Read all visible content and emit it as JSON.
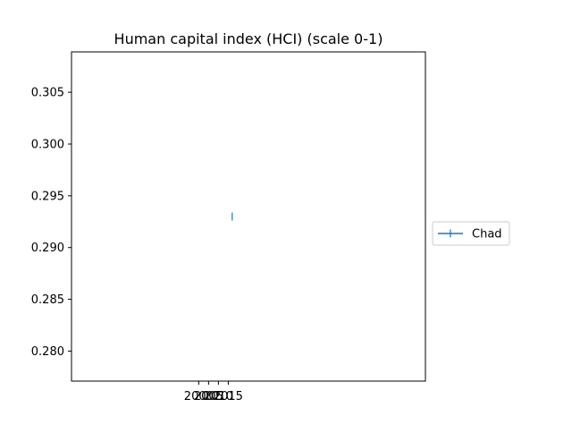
{
  "chart_data": {
    "type": "line",
    "title": "Human capital index (HCI) (scale 0-1)",
    "xlabel": "",
    "ylabel": "",
    "x_ticks": [
      {
        "value": 2000,
        "label": "2000"
      },
      {
        "value": 2005,
        "label": "2005"
      },
      {
        "value": 2010,
        "label": "2010"
      },
      {
        "value": 2015,
        "label": "2015"
      }
    ],
    "y_ticks": [
      0.28,
      0.285,
      0.29,
      0.295,
      0.3,
      0.305
    ],
    "y_tick_labels": [
      "0.280",
      "0.285",
      "0.290",
      "0.295",
      "0.300",
      "0.305"
    ],
    "xlim": [
      1935.4,
      2115.1
    ],
    "ylim": [
      0.2771,
      0.3089
    ],
    "grid": false,
    "legend_position": "right",
    "series": [
      {
        "name": "Chad",
        "color": "#1f77b4",
        "marker": "vline",
        "x": [
          2017
        ],
        "y": [
          0.293
        ]
      }
    ]
  }
}
